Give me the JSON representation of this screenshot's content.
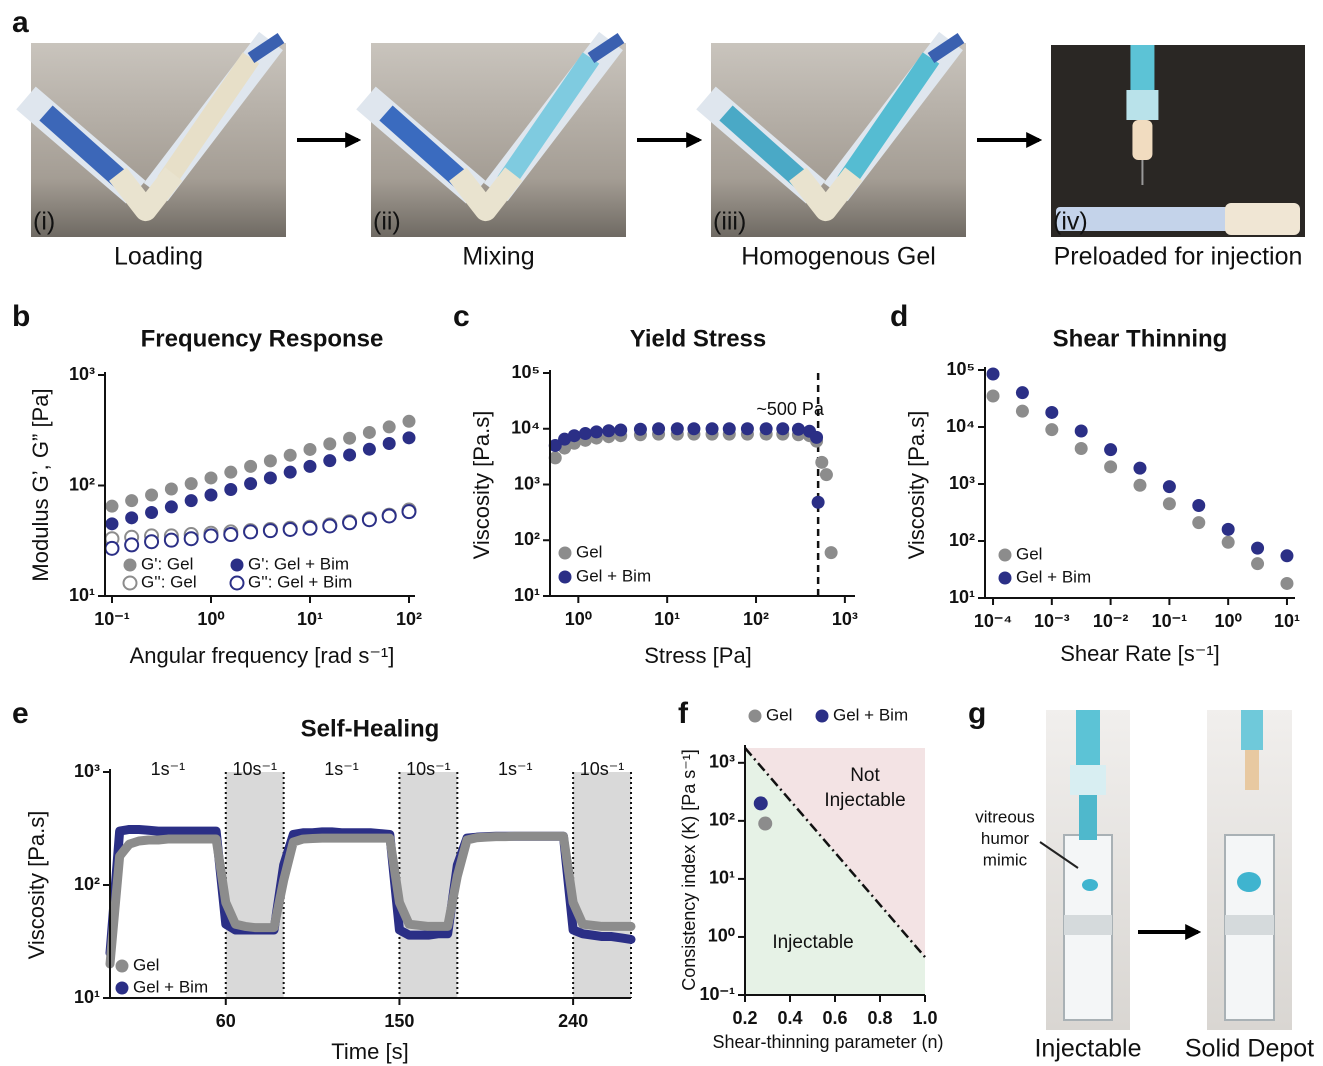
{
  "panel_labels": [
    "a",
    "b",
    "c",
    "d",
    "e",
    "f",
    "g"
  ],
  "panel_a": [
    {
      "tag": "(i)",
      "caption": "Loading"
    },
    {
      "tag": "(ii)",
      "caption": "Mixing"
    },
    {
      "tag": "(iii)",
      "caption": "Homogenous Gel"
    },
    {
      "tag": "(iv)",
      "caption": "Preloaded for injection"
    }
  ],
  "panel_g": {
    "callout": [
      "vitreous",
      "humor",
      "mimic"
    ],
    "captions": [
      "Injectable",
      "Solid Depot"
    ]
  },
  "chart_data": [
    {
      "type": "scatter",
      "title": "Frequency Response",
      "x_label": "Angular frequency [rad s⁻¹]",
      "y_label": "Modulus G’, G” [Pa]",
      "xscale": "log",
      "yscale": "log",
      "xlim": [
        0.085,
        115
      ],
      "ylim": [
        10,
        1000
      ],
      "xticks": [
        {
          "value": 0.1,
          "label": "10⁻¹"
        },
        {
          "value": 1,
          "label": "10⁰"
        },
        {
          "value": 10,
          "label": "10¹"
        },
        {
          "value": 100,
          "label": "10²"
        }
      ],
      "yticks": [
        {
          "value": 10,
          "label": "10¹"
        },
        {
          "value": 100,
          "label": "10²"
        },
        {
          "value": 1000,
          "label": "10³"
        }
      ],
      "legend": "lower left",
      "grid": false,
      "x": [
        0.1,
        0.158,
        0.251,
        0.398,
        0.631,
        1,
        1.585,
        2.512,
        3.981,
        6.31,
        10,
        15.85,
        25.12,
        39.81,
        63.1,
        100
      ],
      "series": [
        {
          "name": "G': Gel",
          "color": "#8c8c8c",
          "filled": true,
          "values": [
            65,
            73,
            82,
            93,
            104,
            117,
            132,
            149,
            167,
            188,
            212,
            238,
            268,
            302,
            339,
            381
          ]
        },
        {
          "name": "G'': Gel",
          "color": "#8c8c8c",
          "filled": false,
          "values": [
            33,
            34,
            35,
            35,
            36,
            37,
            38,
            39,
            40,
            41,
            42,
            44,
            47,
            50,
            54,
            60
          ]
        },
        {
          "name": "G': Gel + Bim",
          "color": "#2b2f86",
          "filled": true,
          "values": [
            45,
            51,
            57,
            64,
            73,
            82,
            92,
            104,
            117,
            132,
            149,
            168,
            189,
            213,
            240,
            270
          ]
        },
        {
          "name": "G'': Gel + Bim",
          "color": "#2b2f86",
          "filled": false,
          "values": [
            27,
            29,
            31,
            32,
            33,
            35,
            36,
            38,
            39,
            40,
            41,
            43,
            46,
            49,
            53,
            58
          ]
        }
      ]
    },
    {
      "type": "scatter",
      "title": "Yield Stress",
      "x_label": "Stress [Pa]",
      "y_label": "Viscosity [Pa.s]",
      "xscale": "log",
      "yscale": "log",
      "xlim": [
        0.48,
        1300
      ],
      "ylim": [
        10,
        100000
      ],
      "xticks": [
        {
          "value": 1,
          "label": "10⁰"
        },
        {
          "value": 10,
          "label": "10¹"
        },
        {
          "value": 100,
          "label": "10²"
        },
        {
          "value": 1000,
          "label": "10³"
        }
      ],
      "yticks": [
        {
          "value": 10,
          "label": "10¹"
        },
        {
          "value": 100,
          "label": "10²"
        },
        {
          "value": 1000,
          "label": "10³"
        },
        {
          "value": 10000,
          "label": "10⁴"
        },
        {
          "value": 100000,
          "label": "10⁵"
        }
      ],
      "legend": "lower left",
      "grid": false,
      "vline": 500,
      "annotation": "~500 Pa",
      "series": [
        {
          "name": "Gel",
          "color": "#8c8c8c",
          "filled": true,
          "x": [
            0.55,
            0.7,
            0.9,
            1.2,
            1.6,
            2.2,
            3,
            5,
            8,
            13,
            20,
            32,
            50,
            80,
            130,
            200,
            300,
            400,
            480,
            550,
            620,
            700
          ],
          "values": [
            3000,
            4500,
            5500,
            6200,
            6800,
            7200,
            7500,
            7800,
            8000,
            8000,
            8000,
            8000,
            8000,
            8000,
            8000,
            8000,
            7800,
            7500,
            6000,
            2500,
            1500,
            60
          ]
        },
        {
          "name": "Gel + Bim",
          "color": "#2b2f86",
          "filled": true,
          "x": [
            0.55,
            0.7,
            0.9,
            1.2,
            1.6,
            2.2,
            3,
            5,
            8,
            13,
            20,
            32,
            50,
            80,
            130,
            200,
            300,
            400,
            480,
            500
          ],
          "values": [
            5000,
            6500,
            7500,
            8200,
            8800,
            9200,
            9500,
            9800,
            10000,
            10000,
            10000,
            10000,
            10000,
            10000,
            10000,
            10000,
            9800,
            9000,
            7000,
            480
          ]
        }
      ]
    },
    {
      "type": "scatter",
      "title": "Shear Thinning",
      "x_label": "Shear Rate [s⁻¹]",
      "y_label": "Viscosity [Pa.s]",
      "xscale": "log",
      "yscale": "log",
      "xlim": [
        7.3e-05,
        13.7
      ],
      "ylim": [
        10,
        100000
      ],
      "xticks": [
        {
          "value": 0.0001,
          "label": "10⁻⁴"
        },
        {
          "value": 0.001,
          "label": "10⁻³"
        },
        {
          "value": 0.01,
          "label": "10⁻²"
        },
        {
          "value": 0.1,
          "label": "10⁻¹"
        },
        {
          "value": 1,
          "label": "10⁰"
        },
        {
          "value": 10,
          "label": "10¹"
        }
      ],
      "yticks": [
        {
          "value": 10,
          "label": "10¹"
        },
        {
          "value": 100,
          "label": "10²"
        },
        {
          "value": 1000,
          "label": "10³"
        },
        {
          "value": 10000,
          "label": "10⁴"
        },
        {
          "value": 100000,
          "label": "10⁵"
        }
      ],
      "legend": "lower left",
      "grid": false,
      "x": [
        0.0001,
        0.000316,
        0.001,
        0.00316,
        0.01,
        0.0316,
        0.1,
        0.316,
        1,
        3.16,
        10
      ],
      "series": [
        {
          "name": "Gel",
          "color": "#8c8c8c",
          "filled": true,
          "values": [
            35000,
            19000,
            9000,
            4200,
            2000,
            950,
            450,
            210,
            95,
            40,
            18
          ]
        },
        {
          "name": "Gel + Bim",
          "color": "#2b2f86",
          "filled": true,
          "values": [
            85000,
            40000,
            18000,
            8500,
            4000,
            1900,
            900,
            420,
            160,
            75,
            55
          ]
        }
      ]
    },
    {
      "type": "line",
      "title": "Self-Healing",
      "x_label": "Time [s]",
      "y_label": "Viscosity [Pa.s]",
      "xscale": "linear",
      "yscale": "log",
      "xlim": [
        0,
        270
      ],
      "ylim": [
        10,
        1000
      ],
      "xticks": [
        60,
        150,
        240
      ],
      "yticks": [
        {
          "value": 10,
          "label": "10¹"
        },
        {
          "value": 100,
          "label": "10²"
        },
        {
          "value": 1000,
          "label": "10³"
        }
      ],
      "legend": "lower left",
      "grid": false,
      "intervals": [
        {
          "start": 0,
          "end": 60,
          "label": "1s⁻¹",
          "shaded": false
        },
        {
          "start": 60,
          "end": 90,
          "label": "10s⁻¹",
          "shaded": true
        },
        {
          "start": 90,
          "end": 150,
          "label": "1s⁻¹",
          "shaded": false
        },
        {
          "start": 150,
          "end": 180,
          "label": "10s⁻¹",
          "shaded": true
        },
        {
          "start": 180,
          "end": 240,
          "label": "1s⁻¹",
          "shaded": false
        },
        {
          "start": 240,
          "end": 270,
          "label": "10s⁻¹",
          "shaded": true
        }
      ],
      "x": [
        0,
        5,
        10,
        15,
        20,
        25,
        30,
        35,
        40,
        45,
        50,
        55,
        60,
        65,
        70,
        75,
        80,
        85,
        90,
        95,
        100,
        105,
        110,
        115,
        120,
        125,
        130,
        135,
        140,
        145,
        150,
        155,
        160,
        165,
        170,
        175,
        180,
        185,
        190,
        195,
        200,
        205,
        210,
        215,
        220,
        225,
        230,
        235,
        240,
        245,
        250,
        255,
        260,
        265,
        270
      ],
      "series": [
        {
          "name": "Gel",
          "color": "#8c8c8c",
          "values": [
            20,
            180,
            230,
            245,
            250,
            250,
            255,
            255,
            255,
            255,
            255,
            255,
            70,
            45,
            43,
            42,
            42,
            42,
            110,
            240,
            255,
            258,
            260,
            260,
            260,
            260,
            260,
            260,
            260,
            260,
            70,
            45,
            44,
            43,
            43,
            43,
            120,
            250,
            262,
            265,
            268,
            268,
            270,
            270,
            270,
            270,
            270,
            270,
            70,
            45,
            44,
            43,
            43,
            43,
            43
          ]
        },
        {
          "name": "Gel + Bim",
          "color": "#2b2f86",
          "values": [
            25,
            300,
            310,
            310,
            305,
            300,
            300,
            300,
            300,
            300,
            300,
            300,
            45,
            40,
            40,
            40,
            40,
            40,
            150,
            280,
            290,
            290,
            295,
            295,
            290,
            290,
            290,
            290,
            285,
            280,
            40,
            36,
            36,
            36,
            37,
            37,
            150,
            260,
            265,
            268,
            270,
            270,
            270,
            270,
            270,
            270,
            270,
            270,
            40,
            37,
            36,
            35,
            35,
            34,
            33
          ]
        }
      ]
    },
    {
      "type": "scatter",
      "x_label": "Shear-thinning parameter (n)",
      "y_label": "Consistency index (K) [Pa s⁻¹]",
      "xscale": "linear",
      "yscale": "log",
      "xlim": [
        0.2,
        1
      ],
      "ylim": [
        0.1,
        1800
      ],
      "xticks": [
        0.2,
        0.4,
        0.6,
        0.8,
        {
          "value": 1,
          "label": "1.0"
        }
      ],
      "yticks": [
        {
          "value": 0.1,
          "label": "10⁻¹"
        },
        {
          "value": 1,
          "label": "10⁰"
        },
        {
          "value": 10,
          "label": "10¹"
        },
        {
          "value": 100,
          "label": "10²"
        },
        {
          "value": 1000,
          "label": "10³"
        }
      ],
      "legend": "top",
      "grid": false,
      "boundary": {
        "x": [
          0.2,
          1
        ],
        "values": [
          1800,
          0.45
        ]
      },
      "regions": [
        {
          "label": [
            "Not",
            "Injectable"
          ],
          "color": "#f3e3e4"
        },
        {
          "label": [
            "Injectable"
          ],
          "color": "#e6f2e6"
        }
      ],
      "series": [
        {
          "name": "Gel",
          "color": "#8c8c8c",
          "filled": true,
          "x": [
            0.29
          ],
          "values": [
            90
          ]
        },
        {
          "name": "Gel + Bim",
          "color": "#2b2f86",
          "filled": true,
          "x": [
            0.27
          ],
          "values": [
            200
          ]
        }
      ]
    }
  ]
}
